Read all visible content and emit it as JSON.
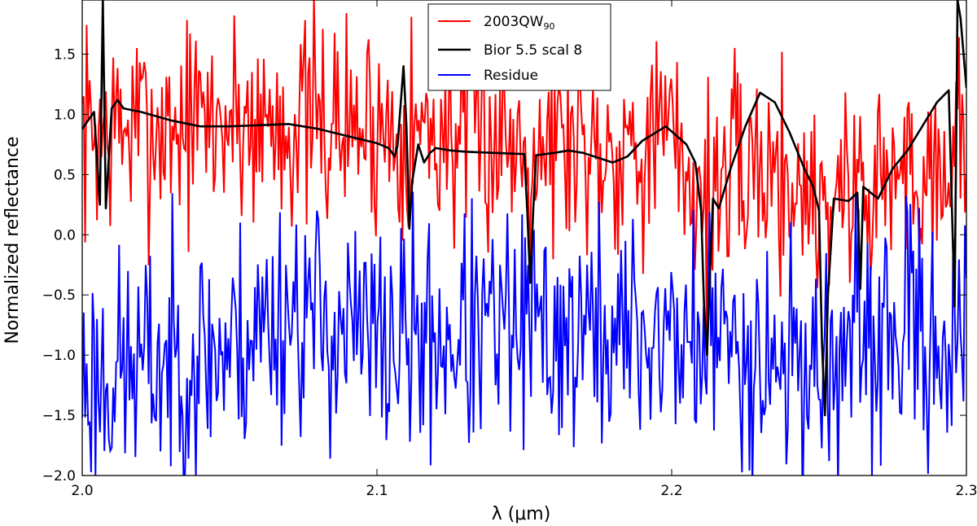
{
  "chart_data": {
    "type": "line",
    "title": "",
    "xlabel": "λ (μm)",
    "ylabel": "Normalized reflectance",
    "xlim": [
      2.0,
      2.3
    ],
    "ylim": [
      -2.0,
      1.95
    ],
    "grid": false,
    "x_ticks": [
      2.0,
      2.1,
      2.2,
      2.3
    ],
    "x_tick_labels": [
      "2.0",
      "2.1",
      "2.2",
      "2.3"
    ],
    "y_ticks": [
      -2.0,
      -1.5,
      -1.0,
      -0.5,
      0.0,
      0.5,
      1.0,
      1.5
    ],
    "y_tick_labels": [
      "−2.0",
      "−1.5",
      "−1.0",
      "−0.5",
      "0.0",
      "0.5",
      "1.0",
      "1.5"
    ],
    "legend": {
      "placement": "top-center",
      "entries": [
        {
          "name": "2003QW90",
          "label_main": "2003QW",
          "label_sub": "90",
          "color": "#ff0000"
        },
        {
          "name": "Bior 5.5 scal 8",
          "label_main": "Bior 5.5 scal 8",
          "label_sub": "",
          "color": "#000000"
        },
        {
          "name": "Residue",
          "label_main": "Residue",
          "label_sub": "",
          "color": "#0000ff"
        }
      ]
    },
    "series": [
      {
        "name": "Bior 5.5 scal 8",
        "color": "#000000",
        "points": [
          [
            2.0,
            0.88
          ],
          [
            2.004,
            1.02
          ],
          [
            2.006,
            0.25
          ],
          [
            2.007,
            1.95
          ],
          [
            2.008,
            0.22
          ],
          [
            2.01,
            1.05
          ],
          [
            2.012,
            1.12
          ],
          [
            2.014,
            1.05
          ],
          [
            2.02,
            1.02
          ],
          [
            2.03,
            0.95
          ],
          [
            2.04,
            0.9
          ],
          [
            2.05,
            0.9
          ],
          [
            2.06,
            0.91
          ],
          [
            2.07,
            0.92
          ],
          [
            2.08,
            0.88
          ],
          [
            2.09,
            0.82
          ],
          [
            2.1,
            0.76
          ],
          [
            2.104,
            0.72
          ],
          [
            2.106,
            0.65
          ],
          [
            2.107,
            0.74
          ],
          [
            2.109,
            1.4
          ],
          [
            2.11,
            0.9
          ],
          [
            2.111,
            0.05
          ],
          [
            2.112,
            0.45
          ],
          [
            2.114,
            0.75
          ],
          [
            2.116,
            0.6
          ],
          [
            2.118,
            0.68
          ],
          [
            2.12,
            0.72
          ],
          [
            2.125,
            0.7
          ],
          [
            2.13,
            0.69
          ],
          [
            2.14,
            0.68
          ],
          [
            2.15,
            0.67
          ],
          [
            2.151,
            0.2
          ],
          [
            2.152,
            -0.4
          ],
          [
            2.153,
            0.2
          ],
          [
            2.154,
            0.66
          ],
          [
            2.16,
            0.68
          ],
          [
            2.165,
            0.7
          ],
          [
            2.17,
            0.68
          ],
          [
            2.18,
            0.6
          ],
          [
            2.185,
            0.65
          ],
          [
            2.19,
            0.78
          ],
          [
            2.198,
            0.9
          ],
          [
            2.205,
            0.75
          ],
          [
            2.208,
            0.6
          ],
          [
            2.21,
            0.2
          ],
          [
            2.211,
            -0.6
          ],
          [
            2.212,
            -1.0
          ],
          [
            2.213,
            -0.3
          ],
          [
            2.214,
            0.3
          ],
          [
            2.216,
            0.22
          ],
          [
            2.22,
            0.55
          ],
          [
            2.225,
            0.9
          ],
          [
            2.23,
            1.18
          ],
          [
            2.235,
            1.1
          ],
          [
            2.24,
            0.85
          ],
          [
            2.245,
            0.55
          ],
          [
            2.248,
            0.4
          ],
          [
            2.25,
            0.2
          ],
          [
            2.251,
            -0.9
          ],
          [
            2.252,
            -1.5
          ],
          [
            2.253,
            -0.5
          ],
          [
            2.255,
            0.3
          ],
          [
            2.26,
            0.28
          ],
          [
            2.263,
            0.35
          ],
          [
            2.264,
            -0.45
          ],
          [
            2.265,
            0.4
          ],
          [
            2.27,
            0.3
          ],
          [
            2.275,
            0.55
          ],
          [
            2.28,
            0.7
          ],
          [
            2.29,
            1.1
          ],
          [
            2.294,
            1.2
          ],
          [
            2.296,
            -0.6
          ],
          [
            2.297,
            1.95
          ],
          [
            2.298,
            1.8
          ],
          [
            2.3,
            1.22
          ]
        ]
      }
    ],
    "noisy_series": [
      {
        "name": "2003QW90",
        "color": "#ff0000",
        "x_start": 2.0,
        "x_end": 2.3,
        "n_points": 600,
        "seed": 7,
        "baseline": [
          [
            2.0,
            0.85
          ],
          [
            2.05,
            0.95
          ],
          [
            2.1,
            0.9
          ],
          [
            2.12,
            0.85
          ],
          [
            2.15,
            0.8
          ],
          [
            2.18,
            0.75
          ],
          [
            2.2,
            0.8
          ],
          [
            2.21,
            0.3
          ],
          [
            2.23,
            0.6
          ],
          [
            2.25,
            0.3
          ],
          [
            2.26,
            0.4
          ],
          [
            2.28,
            0.5
          ],
          [
            2.3,
            0.75
          ]
        ],
        "amplitude": 0.45
      },
      {
        "name": "Residue",
        "color": "#0000ff",
        "x_start": 2.0,
        "x_end": 2.3,
        "n_points": 600,
        "seed": 23,
        "baseline": [
          [
            2.0,
            -1.2
          ],
          [
            2.05,
            -0.95
          ],
          [
            2.07,
            -0.6
          ],
          [
            2.1,
            -0.9
          ],
          [
            2.15,
            -0.8
          ],
          [
            2.2,
            -0.85
          ],
          [
            2.22,
            -0.9
          ],
          [
            2.25,
            -1.1
          ],
          [
            2.28,
            -0.8
          ],
          [
            2.3,
            -0.9
          ]
        ],
        "amplitude": 0.5
      }
    ]
  }
}
